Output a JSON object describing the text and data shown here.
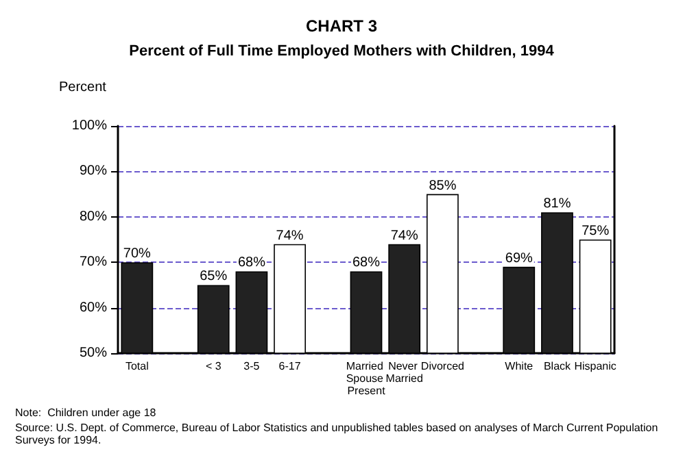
{
  "chart_data": {
    "type": "bar",
    "title": "CHART 3",
    "subtitle": "Percent of Full Time Employed Mothers with Children, 1994",
    "ylabel": "Percent",
    "categories": [
      "Total",
      null,
      "< 3",
      "3-5",
      "6-17",
      null,
      "Married Spouse Present",
      "Never Married",
      "Divorced",
      null,
      "White",
      "Black",
      "Hispanic"
    ],
    "values": [
      70,
      null,
      65,
      68,
      74,
      null,
      68,
      74,
      85,
      null,
      69,
      81,
      75
    ],
    "colors": [
      "#222222",
      null,
      "#222222",
      "#222222",
      "#ffffff",
      null,
      "#222222",
      "#222222",
      "#ffffff",
      null,
      "#222222",
      "#222222",
      "#ffffff"
    ],
    "value_labels": [
      "70%",
      null,
      "65%",
      "68%",
      "74%",
      null,
      "68%",
      "74%",
      "85%",
      null,
      "69%",
      "81%",
      "75%"
    ],
    "ylim": [
      50,
      100
    ],
    "yticks": [
      {
        "value": 50,
        "label": "50%"
      },
      {
        "value": 60,
        "label": "60%"
      },
      {
        "value": 70,
        "label": "70%"
      },
      {
        "value": 80,
        "label": "80%"
      },
      {
        "value": 90,
        "label": "90%"
      },
      {
        "value": 100,
        "label": "100%"
      }
    ],
    "grid": "y",
    "annotations": [
      "Note:  Children under age 18",
      "Source: U.S. Dept. of Commerce, Bureau of Labor Statistics and unpublished tables based on analyses of March Current Population Surveys for 1994."
    ]
  }
}
